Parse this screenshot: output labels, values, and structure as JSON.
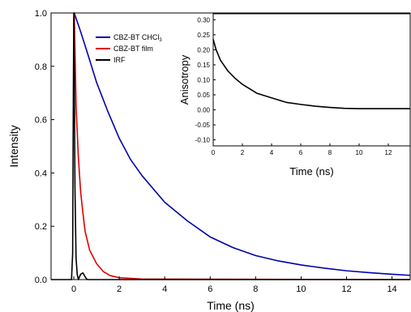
{
  "chart_data": [
    {
      "id": "main",
      "type": "line",
      "xlabel": "Time (ns)",
      "ylabel": "Intensity",
      "xlim": [
        -1,
        14.8
      ],
      "ylim": [
        0,
        1.0
      ],
      "xticks": [
        0,
        2,
        4,
        6,
        8,
        10,
        12,
        14
      ],
      "yticks": [
        0.0,
        0.2,
        0.4,
        0.6,
        0.8,
        1.0
      ],
      "xtick_labels": [
        "0",
        "2",
        "4",
        "6",
        "8",
        "10",
        "12",
        "14"
      ],
      "ytick_labels": [
        "0.0",
        "0.2",
        "0.4",
        "0.6",
        "0.8",
        "1.0"
      ],
      "grid": false,
      "legend_position": "top-left",
      "series": [
        {
          "name": "CBZ-BT CHCl3",
          "legend_main": "CBZ-BT CHCl",
          "legend_sub": "3",
          "color": "#0000aa",
          "x": [
            0.0,
            0.02,
            0.3,
            0.6,
            1.0,
            1.5,
            2.0,
            2.5,
            3.0,
            4.0,
            5.0,
            6.0,
            7.0,
            8.0,
            9.0,
            10.0,
            11.0,
            12.0,
            13.0,
            14.0,
            14.8
          ],
          "y": [
            0.97,
            1.0,
            0.93,
            0.85,
            0.74,
            0.63,
            0.53,
            0.45,
            0.39,
            0.29,
            0.22,
            0.16,
            0.12,
            0.09,
            0.07,
            0.055,
            0.043,
            0.033,
            0.026,
            0.02,
            0.016
          ]
        },
        {
          "name": "CBZ-BT film",
          "legend_main": "CBZ-BT film",
          "color": "#dd0000",
          "x": [
            0.0,
            0.02,
            0.1,
            0.2,
            0.3,
            0.4,
            0.5,
            0.7,
            1.0,
            1.3,
            1.6,
            2.0,
            3.0,
            14.8
          ],
          "y": [
            0.95,
            1.0,
            0.65,
            0.46,
            0.33,
            0.25,
            0.18,
            0.11,
            0.06,
            0.03,
            0.015,
            0.007,
            0.002,
            0.0
          ]
        },
        {
          "name": "IRF",
          "legend_main": "IRF",
          "color": "#000000",
          "x": [
            -1.0,
            -0.1,
            -0.05,
            -0.02,
            0.0,
            0.02,
            0.05,
            0.1,
            0.15,
            0.2,
            0.3,
            0.4,
            0.45,
            0.5,
            0.55,
            0.6,
            0.8,
            14.8
          ],
          "y": [
            0.0,
            0.0,
            0.1,
            0.7,
            1.0,
            0.8,
            0.35,
            0.08,
            0.02,
            0.0,
            0.02,
            0.025,
            0.018,
            0.01,
            0.004,
            0.0,
            0.0,
            0.0
          ]
        }
      ]
    },
    {
      "id": "inset",
      "type": "line",
      "xlabel": "Time (ns)",
      "ylabel": "Anisotropy",
      "xlim": [
        0,
        13.5
      ],
      "ylim": [
        -0.12,
        0.32
      ],
      "xticks": [
        0,
        2,
        4,
        6,
        8,
        10,
        12
      ],
      "yticks": [
        -0.1,
        -0.05,
        0.0,
        0.05,
        0.1,
        0.15,
        0.2,
        0.25,
        0.3
      ],
      "xtick_labels": [
        "0",
        "2",
        "4",
        "6",
        "8",
        "10",
        "12"
      ],
      "ytick_labels": [
        "-0.10",
        "-0.05",
        "0.00",
        "0.05",
        "0.10",
        "0.15",
        "0.20",
        "0.25",
        "0.30"
      ],
      "grid": false,
      "series": [
        {
          "name": "Anisotropy",
          "color": "#000000",
          "x": [
            0.0,
            0.2,
            0.5,
            1.0,
            1.5,
            2.0,
            2.5,
            3.0,
            4.0,
            5.0,
            6.0,
            7.0,
            8.0,
            9.0,
            10.0,
            11.0,
            12.0,
            13.0,
            13.5
          ],
          "y": [
            0.235,
            0.2,
            0.165,
            0.13,
            0.105,
            0.085,
            0.07,
            0.055,
            0.04,
            0.025,
            0.018,
            0.012,
            0.008,
            0.005,
            0.004,
            0.004,
            0.004,
            0.004,
            0.004
          ]
        }
      ]
    }
  ]
}
